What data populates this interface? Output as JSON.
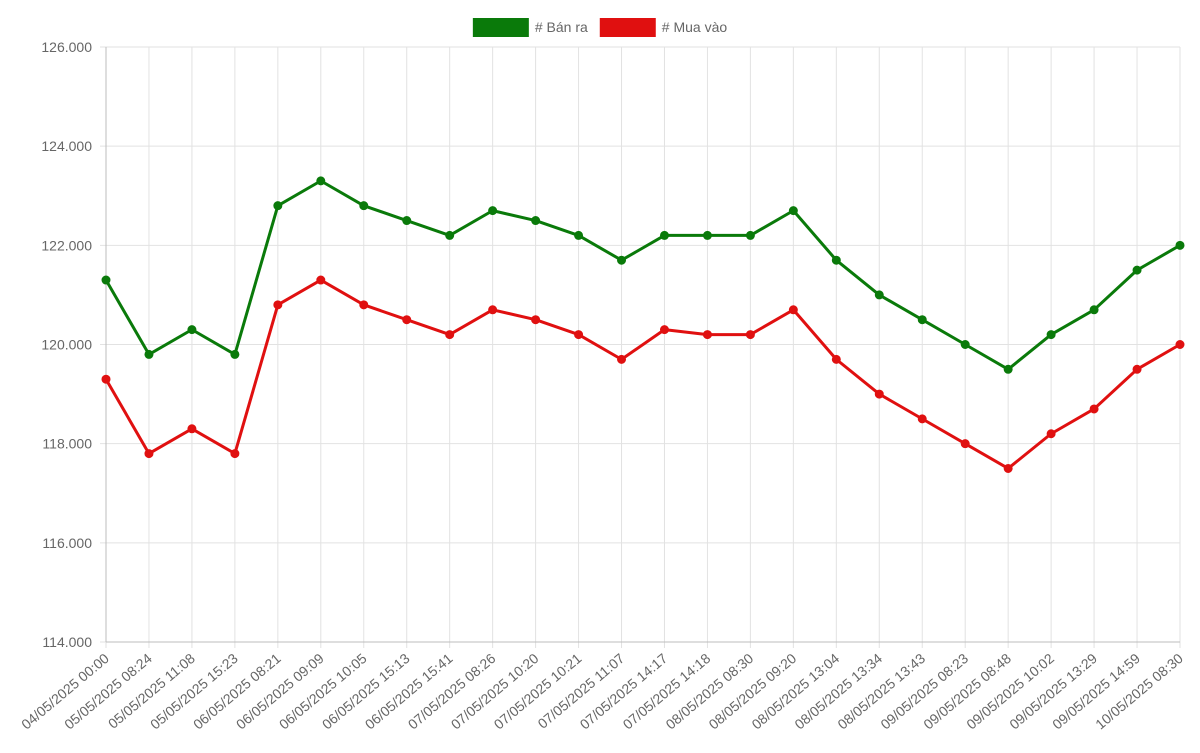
{
  "chart_data": {
    "type": "line",
    "categories": [
      "04/05/2025 00:00",
      "05/05/2025 08:24",
      "05/05/2025 11:08",
      "05/05/2025 15:23",
      "06/05/2025 08:21",
      "06/05/2025 09:09",
      "06/05/2025 10:05",
      "06/05/2025 15:13",
      "06/05/2025 15:41",
      "07/05/2025 08:26",
      "07/05/2025 10:20",
      "07/05/2025 10:21",
      "07/05/2025 11:07",
      "07/05/2025 14:17",
      "07/05/2025 14:18",
      "08/05/2025 08:30",
      "08/05/2025 09:20",
      "08/05/2025 13:04",
      "08/05/2025 13:34",
      "08/05/2025 13:43",
      "09/05/2025 08:23",
      "09/05/2025 08:48",
      "09/05/2025 10:02",
      "09/05/2025 13:29",
      "09/05/2025 14:59",
      "10/05/2025 08:30"
    ],
    "series": [
      {
        "name": "# Bán ra",
        "color": "#0a7a0a",
        "values": [
          121300,
          119800,
          120300,
          119800,
          122800,
          123300,
          122800,
          122500,
          122200,
          122700,
          122500,
          122200,
          121700,
          122200,
          122200,
          122200,
          122700,
          121700,
          121000,
          120500,
          120000,
          119500,
          120200,
          120700,
          121500,
          122000
        ]
      },
      {
        "name": "# Mua vào",
        "color": "#e01010",
        "values": [
          119300,
          117800,
          118300,
          117800,
          120800,
          121300,
          120800,
          120500,
          120200,
          120700,
          120500,
          120200,
          119700,
          120300,
          120200,
          120200,
          120700,
          119700,
          119000,
          118500,
          118000,
          117500,
          118200,
          118700,
          119500,
          120000
        ]
      }
    ],
    "ylim": [
      114000,
      126000
    ],
    "yticks": [
      114000,
      116000,
      118000,
      120000,
      122000,
      124000,
      126000
    ],
    "ytick_labels": [
      "114.000",
      "116.000",
      "118.000",
      "120.000",
      "122.000",
      "124.000",
      "126.000"
    ],
    "grid": true,
    "legend_position": "top-center"
  }
}
